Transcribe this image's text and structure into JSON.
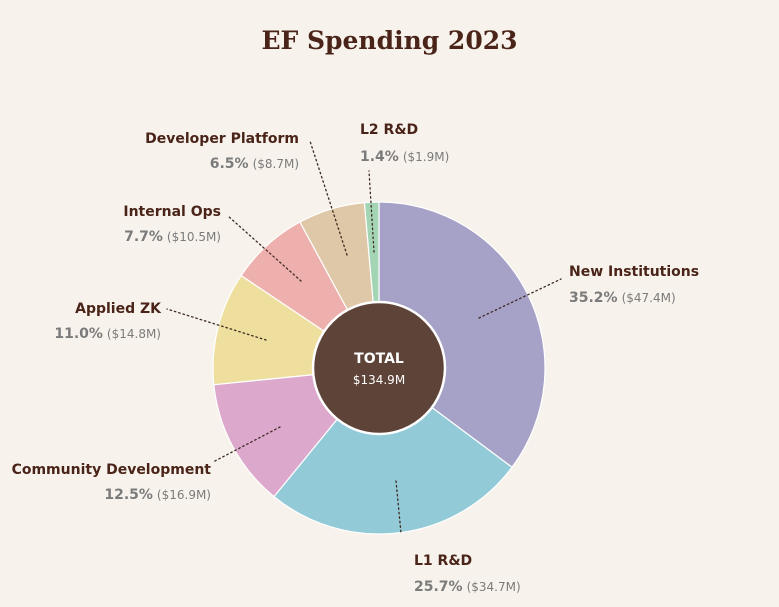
{
  "chart_data": {
    "type": "pie",
    "title": "EF Spending 2023",
    "center": {
      "label": "TOTAL",
      "value": "$134.9M"
    },
    "slices": [
      {
        "name": "New Institutions",
        "pct": 35.2,
        "pct_label": "35.2%",
        "amount": "($47.4M)",
        "color": "#a6a1c6"
      },
      {
        "name": "L1 R&D",
        "pct": 25.7,
        "pct_label": "25.7%",
        "amount": "($34.7M)",
        "color": "#92cad8"
      },
      {
        "name": "Community Development",
        "pct": 12.5,
        "pct_label": "12.5%",
        "amount": "($16.9M)",
        "color": "#dca9cd"
      },
      {
        "name": "Applied ZK",
        "pct": 11.0,
        "pct_label": "11.0%",
        "amount": "($14.8M)",
        "color": "#efdf9f"
      },
      {
        "name": "Internal Ops",
        "pct": 7.7,
        "pct_label": "7.7%",
        "amount": "($10.5M)",
        "color": "#eeb0ad"
      },
      {
        "name": "Developer Platform",
        "pct": 6.5,
        "pct_label": "6.5%",
        "amount": "($8.7M)",
        "color": "#dfc8a8"
      },
      {
        "name": "L2 R&D",
        "pct": 1.4,
        "pct_label": "1.4%",
        "amount": "($1.9M)",
        "color": "#a3d5b5"
      }
    ],
    "center_color": "#5e4338"
  }
}
